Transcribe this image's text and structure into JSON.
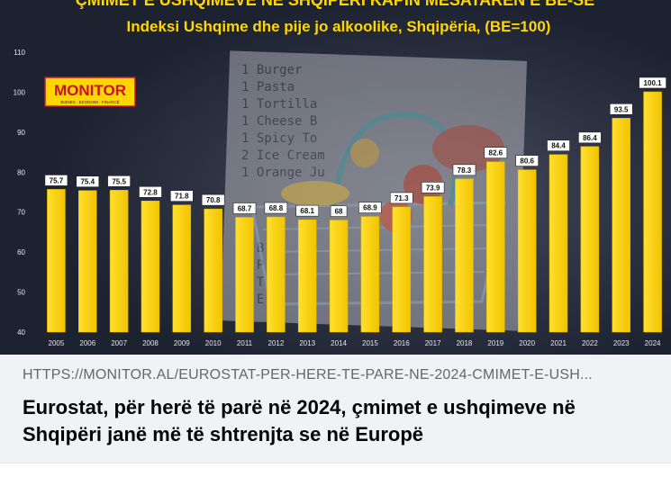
{
  "post": {
    "link_domain": "HTTPS://MONITOR.AL/EUROSTAT-PER-HERE-TE-PARE-NE-2024-CMIMET-E-USH...",
    "link_title": "Eurostat, për herë të parë në 2024, çmimet e ushqimeve në Shqipëri janë më të shtrenjta se në Europë"
  },
  "image": {
    "top_title": "ÇMIMET E USHQIMEVE NË SHQIPËRI KAPIN MESATAREN E BE-SË",
    "brand": "MONITOR",
    "brand_tagline": "BIZNES · EKONOMI · FINANCË",
    "receipt_lines": [
      "1 Burger",
      "1 Pasta",
      "1 Tortilla",
      "1 Cheese B",
      "1 Spicy To",
      "2 Ice Cream",
      "1 Orange Ju",
      "1 B",
      "1 P",
      "1 T",
      "1 E"
    ],
    "colors": {
      "bar": "#f7d21c",
      "bar_dark": "#e0b800",
      "title_yellow": "#ffd600",
      "brand_red": "#c8102e",
      "bg": "#1d2231"
    }
  },
  "chart_data": {
    "type": "bar",
    "title": "Indeksi Ushqime dhe pije jo alkoolike, Shqipëria, (BE=100)",
    "xlabel": "",
    "ylabel": "",
    "ylim": [
      40,
      110
    ],
    "yticks": [
      40,
      50,
      60,
      70,
      80,
      90,
      100,
      110
    ],
    "grid": false,
    "categories": [
      "2005",
      "2006",
      "2007",
      "2008",
      "2009",
      "2010",
      "2011",
      "2012",
      "2013",
      "2014",
      "2015",
      "2016",
      "2017",
      "2018",
      "2019",
      "2020",
      "2021",
      "2022",
      "2023",
      "2024"
    ],
    "values": [
      75.7,
      75.4,
      75.5,
      72.8,
      71.8,
      70.8,
      68.7,
      68.8,
      68.1,
      68,
      68.9,
      71.3,
      73.9,
      78.3,
      82.6,
      80.6,
      84.4,
      86.4,
      93.5,
      100.1
    ],
    "labels": [
      "75.7",
      "75.4",
      "75.5",
      "72.8",
      "71.8",
      "70.8",
      "68.7",
      "68.8",
      "68.1",
      "68",
      "68.9",
      "71.3",
      "73.9",
      "78.3",
      "82.6",
      "80.6",
      "84.4",
      "86.4",
      "93.5",
      "100.1"
    ]
  }
}
